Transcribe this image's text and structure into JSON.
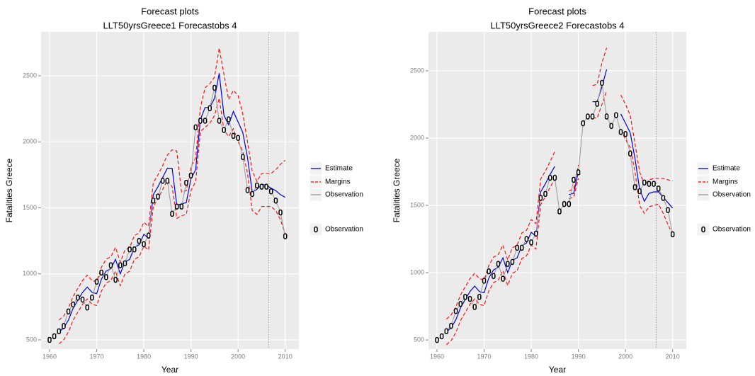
{
  "chart_data": [
    {
      "type": "line",
      "title": "Forecast plots",
      "subtitle": "LLT50yrsGreece1 Forecastobs 4",
      "x_label": "Year",
      "y_label": "Fatalities Greece",
      "x": [
        1960,
        1961,
        1962,
        1963,
        1964,
        1965,
        1966,
        1967,
        1968,
        1969,
        1970,
        1971,
        1972,
        1973,
        1974,
        1975,
        1976,
        1977,
        1978,
        1979,
        1980,
        1981,
        1982,
        1983,
        1984,
        1985,
        1986,
        1987,
        1988,
        1989,
        1990,
        1991,
        1992,
        1993,
        1994,
        1995,
        1996,
        1997,
        1998,
        1999,
        2000,
        2001,
        2002,
        2003,
        2004,
        2005,
        2006,
        2007,
        2008,
        2009,
        2010
      ],
      "xlim": [
        1958.2,
        2012.9
      ],
      "xticks": [
        1960,
        1970,
        1980,
        1990,
        2000,
        2010
      ],
      "ylim": [
        430,
        2833
      ],
      "yticks": [
        500,
        1000,
        1500,
        2000,
        2500
      ],
      "grid": true,
      "vline": 2006.5,
      "series": [
        {
          "name": "Estimate",
          "color": "#0000dd",
          "values": [
            null,
            null,
            560,
            590,
            650,
            740,
            800,
            860,
            900,
            860,
            850,
            960,
            1020,
            1040,
            1110,
            1000,
            1090,
            1110,
            1200,
            1220,
            1300,
            1270,
            1600,
            1660,
            1730,
            1800,
            1800,
            1520,
            1530,
            1540,
            1720,
            1790,
            2170,
            2260,
            2260,
            2330,
            2520,
            2200,
            2130,
            2230,
            2150,
            2070,
            1880,
            1620,
            1640,
            1680,
            1670,
            1650,
            1630,
            1600,
            1580
          ]
        },
        {
          "name": "Margins",
          "color": "#ff0000",
          "values": [
            null,
            null,
            650,
            680,
            740,
            830,
            890,
            950,
            990,
            950,
            940,
            1050,
            1110,
            1130,
            1200,
            1090,
            1180,
            1200,
            1290,
            1310,
            1390,
            1360,
            1690,
            1750,
            1820,
            1900,
            1940,
            1930,
            1620,
            1630,
            1810,
            1880,
            2260,
            2410,
            2440,
            2490,
            2710,
            2510,
            2320,
            2390,
            2350,
            2210,
            2000,
            1780,
            1700,
            1760,
            1760,
            1760,
            1790,
            1830,
            1860
          ],
          "lower": [
            null,
            null,
            470,
            500,
            560,
            650,
            710,
            770,
            810,
            770,
            760,
            870,
            930,
            950,
            1020,
            910,
            1000,
            1020,
            1110,
            1130,
            1210,
            1180,
            1510,
            1570,
            1640,
            1710,
            1660,
            1420,
            1440,
            1450,
            1630,
            1700,
            2080,
            2110,
            2140,
            2200,
            2330,
            2090,
            2040,
            2100,
            2000,
            1930,
            1760,
            1480,
            1450,
            1510,
            1510,
            1510,
            1480,
            1410,
            1300
          ]
        },
        {
          "name": "Observation",
          "color": "#999999",
          "values": [
            500,
            527,
            565,
            605,
            715,
            768,
            820,
            805,
            745,
            820,
            940,
            1010,
            975,
            1065,
            955,
            1065,
            1080,
            1185,
            1185,
            1250,
            1225,
            1290,
            1555,
            1585,
            1705,
            1705,
            1455,
            1510,
            1510,
            1690,
            1745,
            2110,
            2160,
            2160,
            2255,
            2410,
            2160,
            2090,
            2170,
            2045,
            2030,
            1885,
            1635,
            1605,
            1670,
            1660,
            1660,
            1625,
            1555,
            1465,
            1285
          ]
        }
      ],
      "points_legend": "Observation"
    },
    {
      "type": "line",
      "title": "Forecast plots",
      "subtitle": "LLT50yrsGreece2 Forecastobs 4",
      "x_label": "Year",
      "y_label": "Fatalities Greece",
      "x": [
        1960,
        1961,
        1962,
        1963,
        1964,
        1965,
        1966,
        1967,
        1968,
        1969,
        1970,
        1971,
        1972,
        1973,
        1974,
        1975,
        1976,
        1977,
        1978,
        1979,
        1980,
        1981,
        1982,
        1983,
        1984,
        1985,
        1986,
        1987,
        1988,
        1989,
        1990,
        1991,
        1992,
        1993,
        1994,
        1995,
        1996,
        1997,
        1998,
        1999,
        2000,
        2001,
        2002,
        2003,
        2004,
        2005,
        2006,
        2007,
        2008,
        2009,
        2010
      ],
      "xlim": [
        1958.2,
        2012.9
      ],
      "xticks": [
        1960,
        1970,
        1980,
        1990,
        2000,
        2010
      ],
      "ylim": [
        432,
        2789
      ],
      "yticks": [
        500,
        1000,
        1500,
        2000,
        2500
      ],
      "grid": true,
      "vline": 2006.5,
      "series": [
        {
          "name": "Estimate",
          "color": "#0000dd",
          "values": [
            null,
            null,
            560,
            590,
            650,
            740,
            800,
            860,
            900,
            860,
            850,
            960,
            1020,
            1040,
            1110,
            1000,
            1090,
            1110,
            1200,
            1220,
            1300,
            1270,
            1600,
            1660,
            1730,
            1790,
            null,
            null,
            1580,
            1590,
            1750,
            null,
            null,
            2270,
            2270,
            2380,
            2510,
            null,
            null,
            2180,
            2110,
            2040,
            1850,
            1620,
            1530,
            1590,
            1600,
            1600,
            1560,
            1520,
            1480
          ]
        },
        {
          "name": "Margins",
          "color": "#ff0000",
          "values": [
            null,
            null,
            655,
            685,
            745,
            835,
            895,
            955,
            995,
            955,
            945,
            1055,
            1115,
            1135,
            1205,
            1095,
            1185,
            1205,
            1295,
            1315,
            1395,
            1365,
            1695,
            1755,
            1825,
            1900,
            null,
            null,
            1610,
            1620,
            1800,
            null,
            null,
            2390,
            2400,
            2560,
            2670,
            null,
            null,
            2320,
            2250,
            2170,
            1960,
            1750,
            1650,
            1690,
            1700,
            1700,
            1700,
            1690,
            1680
          ],
          "lower": [
            null,
            null,
            465,
            495,
            555,
            645,
            705,
            765,
            805,
            765,
            755,
            865,
            925,
            945,
            1015,
            905,
            995,
            1015,
            1105,
            1125,
            1205,
            1175,
            1505,
            1565,
            1635,
            1695,
            null,
            null,
            1550,
            1560,
            1700,
            null,
            null,
            2150,
            2150,
            2250,
            2350,
            null,
            null,
            2060,
            1990,
            1930,
            1750,
            1500,
            1440,
            1490,
            1500,
            1510,
            1440,
            1360,
            1280
          ]
        },
        {
          "name": "Observation",
          "color": "#999999",
          "values": [
            500,
            527,
            565,
            605,
            715,
            768,
            820,
            805,
            745,
            820,
            940,
            1010,
            975,
            1065,
            955,
            1065,
            1080,
            1185,
            1185,
            1250,
            1225,
            1290,
            1555,
            1585,
            1705,
            1705,
            1455,
            1510,
            1510,
            1690,
            1745,
            2110,
            2160,
            2160,
            2255,
            2410,
            2160,
            2090,
            2170,
            2045,
            2030,
            1885,
            1635,
            1605,
            1670,
            1660,
            1660,
            1625,
            1555,
            1465,
            1285
          ]
        }
      ],
      "points_legend": "Observation"
    }
  ]
}
